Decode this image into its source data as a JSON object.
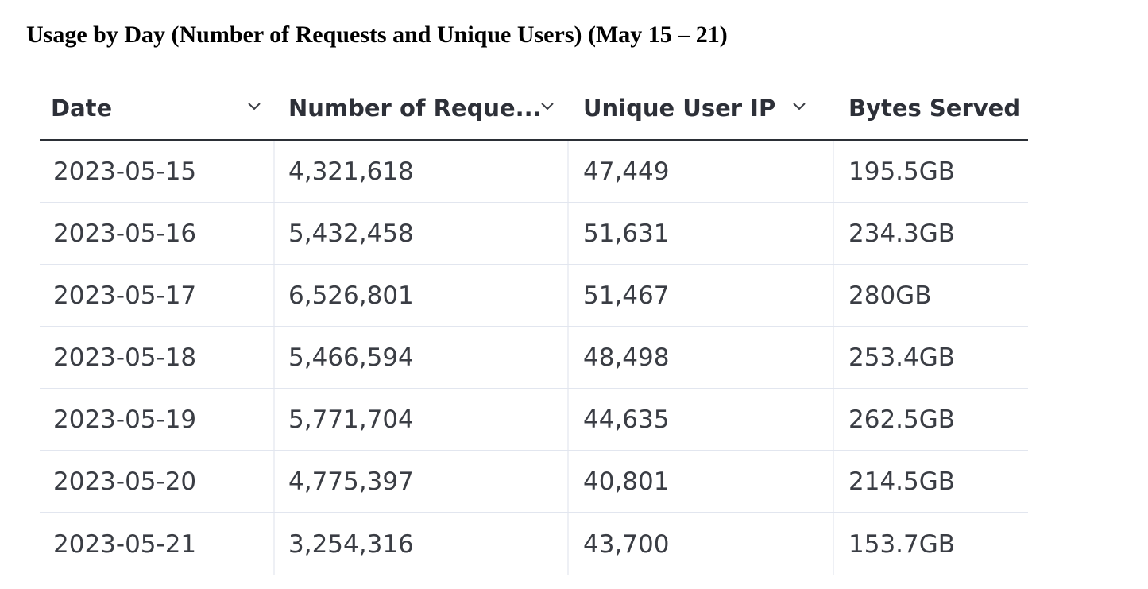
{
  "title": "Usage by Day (Number of Requests and Unique Users) (May 15 – 21)",
  "table": {
    "columns": [
      {
        "label": "Date",
        "icon": "chevron-down-icon"
      },
      {
        "label": "Number of Reque...",
        "icon": "chevron-down-icon"
      },
      {
        "label": "Unique User IP",
        "icon": "chevron-down-icon"
      },
      {
        "label": "Bytes Served"
      }
    ],
    "rows": [
      [
        "2023-05-15",
        "4,321,618",
        "47,449",
        "195.5GB"
      ],
      [
        "2023-05-16",
        "5,432,458",
        "51,631",
        "234.3GB"
      ],
      [
        "2023-05-17",
        "6,526,801",
        "51,467",
        "280GB"
      ],
      [
        "2023-05-18",
        "5,466,594",
        "48,498",
        "253.4GB"
      ],
      [
        "2023-05-19",
        "5,771,704",
        "44,635",
        "262.5GB"
      ],
      [
        "2023-05-20",
        "4,775,397",
        "40,801",
        "214.5GB"
      ],
      [
        "2023-05-21",
        "3,254,316",
        "43,700",
        "153.7GB"
      ]
    ]
  }
}
